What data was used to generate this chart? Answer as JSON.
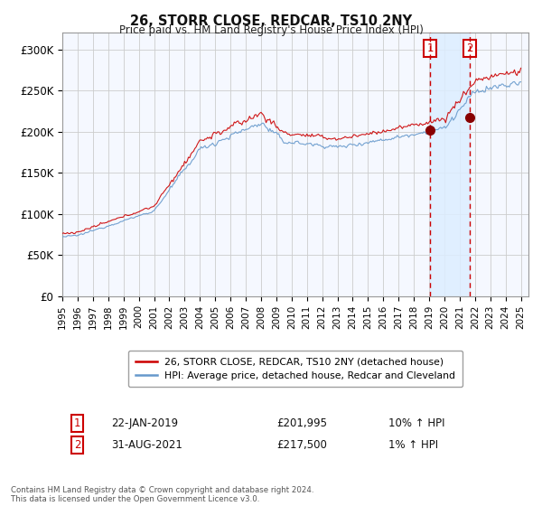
{
  "title": "26, STORR CLOSE, REDCAR, TS10 2NY",
  "subtitle": "Price paid vs. HM Land Registry's House Price Index (HPI)",
  "ylim": [
    0,
    320000
  ],
  "yticks": [
    0,
    50000,
    100000,
    150000,
    200000,
    250000,
    300000
  ],
  "ytick_labels": [
    "£0",
    "£50K",
    "£100K",
    "£150K",
    "£200K",
    "£250K",
    "£300K"
  ],
  "transaction1": {
    "date_num": 2019.055,
    "price": 201995,
    "label": "1",
    "date_str": "22-JAN-2019",
    "price_str": "£201,995",
    "change": "10% ↑ HPI"
  },
  "transaction2": {
    "date_num": 2021.665,
    "price": 217500,
    "label": "2",
    "date_str": "31-AUG-2021",
    "price_str": "£217,500",
    "change": "1% ↑ HPI"
  },
  "line_color_price": "#cc0000",
  "line_color_hpi": "#6699cc",
  "vline_color": "#cc0000",
  "marker_color": "#880000",
  "highlight_color": "#ddeeff",
  "legend_label_price": "26, STORR CLOSE, REDCAR, TS10 2NY (detached house)",
  "legend_label_hpi": "HPI: Average price, detached house, Redcar and Cleveland",
  "footer": "Contains HM Land Registry data © Crown copyright and database right 2024.\nThis data is licensed under the Open Government Licence v3.0.",
  "background_color": "#ffffff",
  "plot_bg_color": "#f5f8ff"
}
